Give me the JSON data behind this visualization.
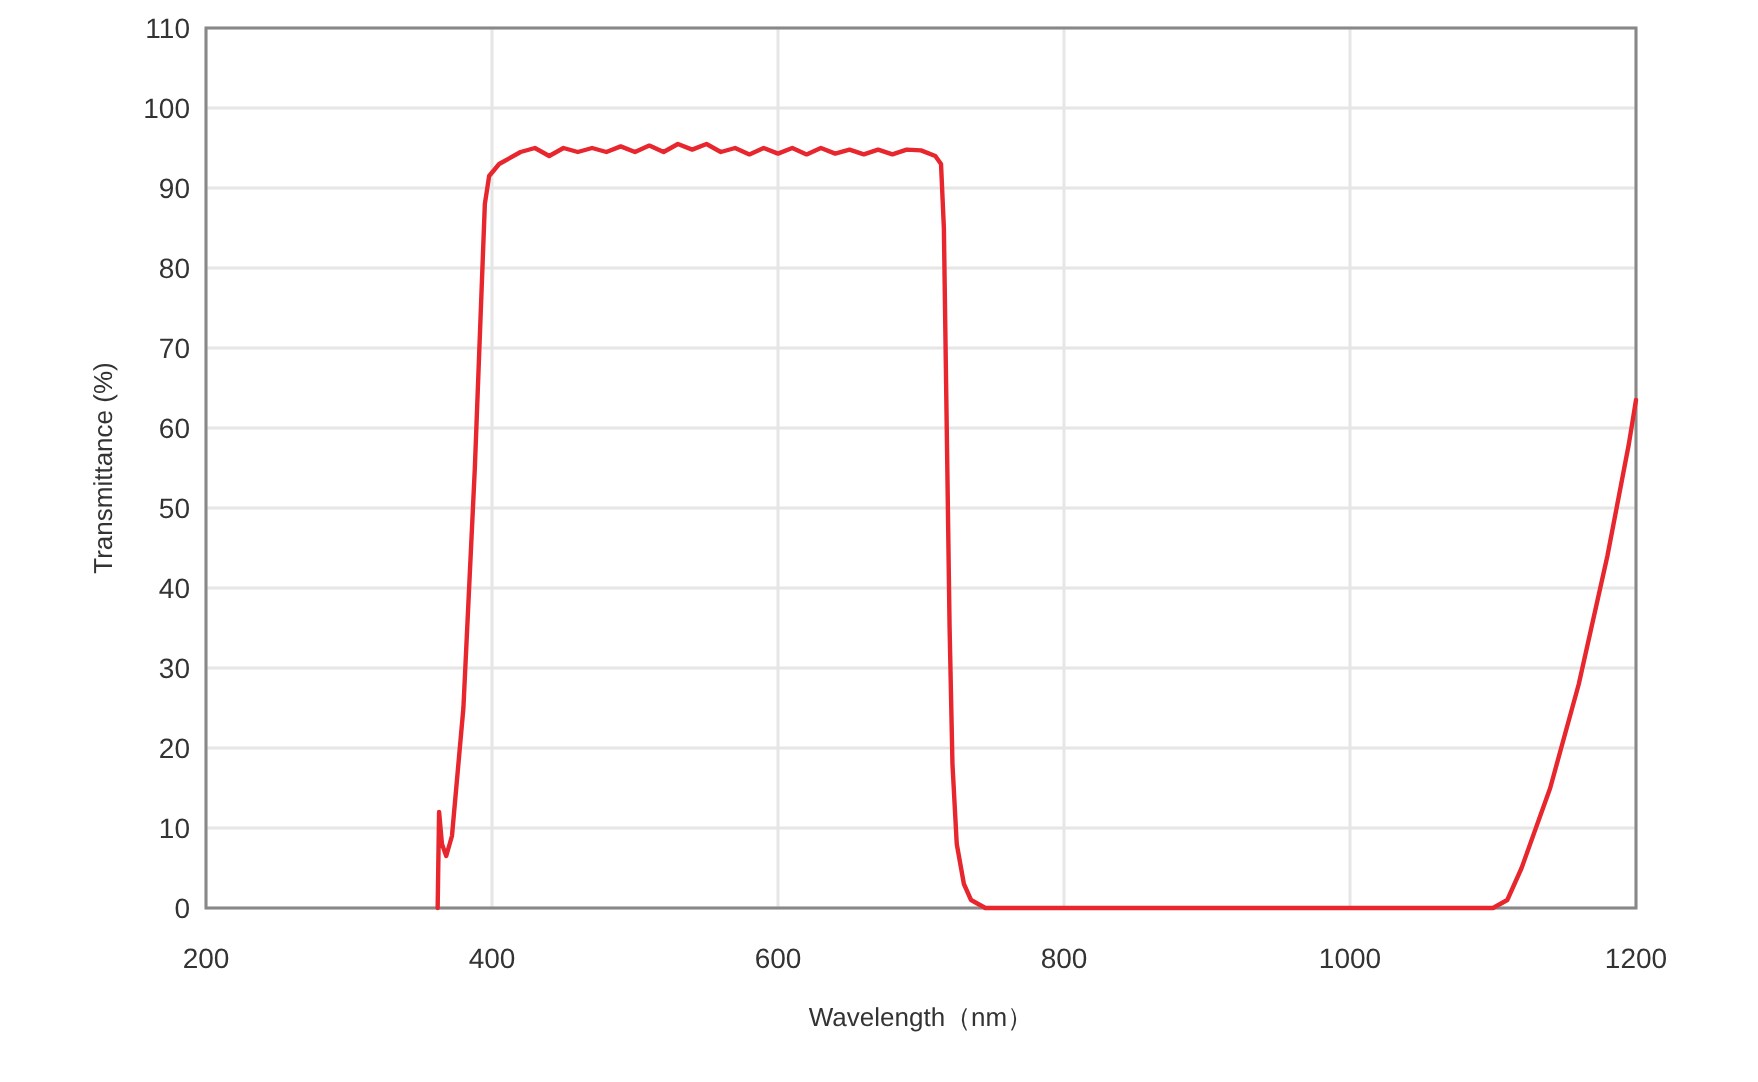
{
  "chart_data": {
    "type": "line",
    "xlabel": "Wavelength（nm）",
    "ylabel": "Transmittance (%)",
    "xlim": [
      200,
      1200
    ],
    "xticks": [
      200,
      400,
      600,
      800,
      1000,
      1200
    ],
    "ylim": [
      0,
      110
    ],
    "yticks": [
      0,
      10,
      20,
      30,
      40,
      50,
      60,
      70,
      80,
      90,
      100,
      110
    ],
    "grid": true,
    "marker": "none",
    "line_style": "solid",
    "series": [
      {
        "color": "#e8262e",
        "x": [
          362,
          363,
          365,
          368,
          372,
          380,
          388,
          395,
          398,
          405,
          420,
          430,
          440,
          450,
          460,
          470,
          480,
          490,
          500,
          510,
          520,
          530,
          540,
          550,
          560,
          570,
          580,
          590,
          600,
          610,
          620,
          630,
          640,
          650,
          660,
          670,
          680,
          690,
          700,
          710,
          714,
          716,
          718,
          720,
          722,
          725,
          730,
          735,
          745,
          800,
          900,
          1000,
          1100,
          1110,
          1120,
          1140,
          1160,
          1180,
          1195,
          1200
        ],
        "values": [
          0,
          12,
          8,
          6.5,
          9,
          25,
          55,
          88,
          91.5,
          93,
          94.5,
          95,
          94,
          95,
          94.5,
          95,
          94.5,
          95.2,
          94.5,
          95.3,
          94.5,
          95.5,
          94.8,
          95.5,
          94.5,
          95,
          94.2,
          95,
          94.3,
          95,
          94.2,
          95,
          94.3,
          94.8,
          94.2,
          94.8,
          94.2,
          94.8,
          94.7,
          94,
          93,
          85,
          60,
          35,
          18,
          8,
          3,
          1,
          0,
          0,
          0,
          0,
          0,
          1,
          5,
          15,
          28,
          44,
          58,
          63.5
        ]
      }
    ]
  }
}
